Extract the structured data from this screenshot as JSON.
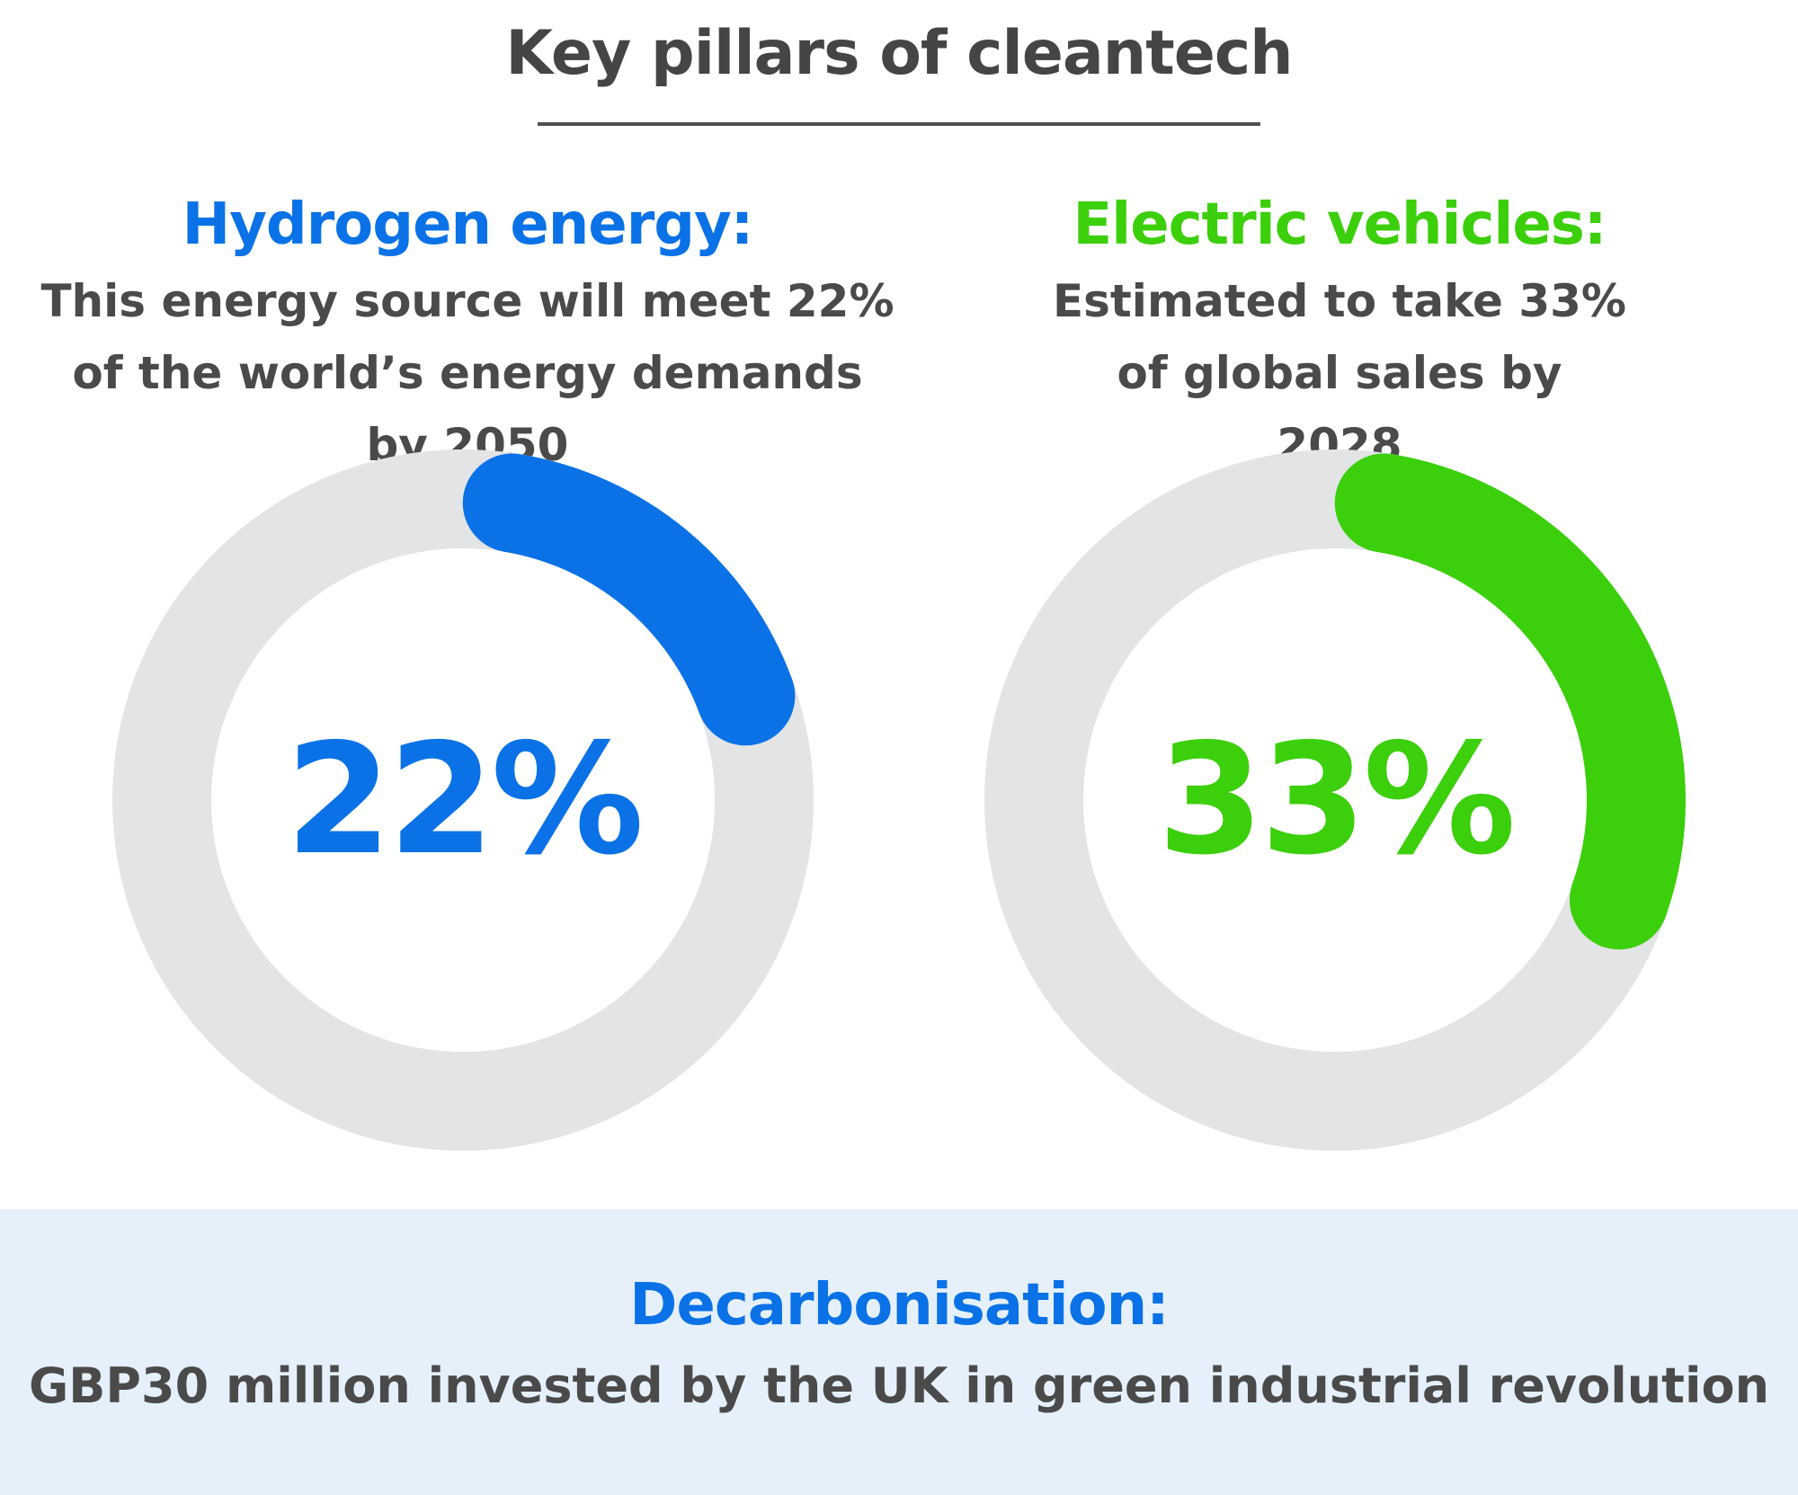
{
  "title": "Key pillars of cleantech",
  "colors": {
    "hydrogen": "#0a72e6",
    "ev": "#3ccf0c",
    "track": "#e3e4e6",
    "band": "#e5f0fb",
    "text": "#4a4a4a"
  },
  "hydrogen": {
    "heading": "Hydrogen energy:",
    "desc": "This energy source will meet 22% of the world’s energy demands by 2050"
  },
  "ev": {
    "heading": "Electric vehicles:",
    "desc": "Estimated to take 33% of global sales by 2028"
  },
  "bottom": {
    "heading": "Decarbonisation:",
    "desc": "GBP30 million invested by the UK in green industrial revolution"
  },
  "chart_data": [
    {
      "type": "pie",
      "series": [
        {
          "name": "Hydrogen energy",
          "value": 22
        }
      ],
      "label": "22%",
      "max": 100
    },
    {
      "type": "pie",
      "series": [
        {
          "name": "Electric vehicles",
          "value": 33
        }
      ],
      "label": "33%",
      "max": 100
    }
  ]
}
